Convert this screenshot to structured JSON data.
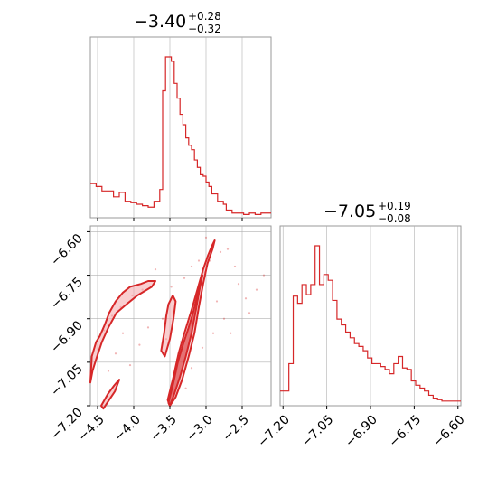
{
  "colors": {
    "series": "#d62728",
    "fill": "#f4a6a9",
    "grid": "#b0b0b0",
    "axis": "#000000"
  },
  "chart_data": [
    {
      "type": "histogram",
      "panel": "marginal-param-1",
      "title": {
        "main": "−3.40",
        "sup": "+0.28",
        "sub": "−0.32"
      },
      "x_range": [
        -4.6,
        -2.1
      ],
      "y_axis": "hidden",
      "grid": true,
      "bins": [
        [
          -4.6,
          2.2
        ],
        [
          -4.52,
          2.0
        ],
        [
          -4.44,
          1.7
        ],
        [
          -4.36,
          1.7
        ],
        [
          -4.28,
          1.3
        ],
        [
          -4.2,
          1.6
        ],
        [
          -4.12,
          1.0
        ],
        [
          -4.04,
          0.9
        ],
        [
          -3.96,
          0.8
        ],
        [
          -3.88,
          0.7
        ],
        [
          -3.8,
          0.6
        ],
        [
          -3.72,
          1.0
        ],
        [
          -3.64,
          1.8
        ],
        [
          -3.6,
          8.5
        ],
        [
          -3.56,
          10.8
        ],
        [
          -3.52,
          10.8
        ],
        [
          -3.48,
          10.5
        ],
        [
          -3.44,
          9.0
        ],
        [
          -3.4,
          8.0
        ],
        [
          -3.36,
          6.9
        ],
        [
          -3.32,
          6.2
        ],
        [
          -3.28,
          5.3
        ],
        [
          -3.24,
          4.8
        ],
        [
          -3.2,
          4.5
        ],
        [
          -3.16,
          3.8
        ],
        [
          -3.12,
          3.3
        ],
        [
          -3.08,
          2.8
        ],
        [
          -3.04,
          2.7
        ],
        [
          -3.0,
          2.3
        ],
        [
          -2.96,
          2.0
        ],
        [
          -2.92,
          1.5
        ],
        [
          -2.88,
          1.5
        ],
        [
          -2.84,
          1.0
        ],
        [
          -2.8,
          1.0
        ],
        [
          -2.76,
          0.8
        ],
        [
          -2.72,
          0.4
        ],
        [
          -2.68,
          0.4
        ],
        [
          -2.64,
          0.2
        ],
        [
          -2.56,
          0.2
        ],
        [
          -2.48,
          0.1
        ],
        [
          -2.4,
          0.2
        ],
        [
          -2.32,
          0.1
        ],
        [
          -2.24,
          0.2
        ],
        [
          -2.1,
          0.2
        ]
      ]
    },
    {
      "type": "contour",
      "panel": "joint-param-1-vs-param-2",
      "x_range": [
        -4.6,
        -2.1
      ],
      "y_range": [
        -7.2,
        -6.58
      ],
      "x_ticks": [
        "−4.5",
        "−4.0",
        "−3.5",
        "−3.0",
        "−2.5"
      ],
      "x_tick_values": [
        -4.5,
        -4.0,
        -3.5,
        -3.0,
        -2.5
      ],
      "y_ticks": [
        "−6.60",
        "−6.75",
        "−6.90",
        "−7.05",
        "−7.20"
      ],
      "y_tick_values": [
        -6.6,
        -6.75,
        -6.9,
        -7.05,
        -7.2
      ],
      "grid": true,
      "outer_contours": [
        [
          [
            -4.58,
            -7.03
          ],
          [
            -4.52,
            -6.98
          ],
          [
            -4.47,
            -6.96
          ],
          [
            -4.4,
            -6.92
          ],
          [
            -4.34,
            -6.88
          ],
          [
            -4.25,
            -6.84
          ],
          [
            -4.15,
            -6.81
          ],
          [
            -4.05,
            -6.79
          ],
          [
            -3.9,
            -6.78
          ],
          [
            -3.8,
            -6.77
          ],
          [
            -3.7,
            -6.77
          ],
          [
            -3.75,
            -6.79
          ],
          [
            -3.95,
            -6.82
          ],
          [
            -4.1,
            -6.85
          ],
          [
            -4.24,
            -6.88
          ],
          [
            -4.35,
            -6.93
          ],
          [
            -4.44,
            -6.98
          ],
          [
            -4.52,
            -7.04
          ],
          [
            -4.57,
            -7.08
          ],
          [
            -4.6,
            -7.12
          ],
          [
            -4.58,
            -7.03
          ]
        ],
        [
          [
            -4.45,
            -7.2
          ],
          [
            -4.36,
            -7.16
          ],
          [
            -4.27,
            -7.13
          ],
          [
            -4.2,
            -7.11
          ],
          [
            -4.26,
            -7.15
          ],
          [
            -4.34,
            -7.18
          ],
          [
            -4.42,
            -7.21
          ],
          [
            -4.45,
            -7.2
          ]
        ],
        [
          [
            -3.53,
            -7.18
          ],
          [
            -3.45,
            -7.1
          ],
          [
            -3.38,
            -7.02
          ],
          [
            -3.3,
            -6.95
          ],
          [
            -3.2,
            -6.87
          ],
          [
            -3.12,
            -6.8
          ],
          [
            -3.04,
            -6.73
          ],
          [
            -2.97,
            -6.68
          ],
          [
            -2.92,
            -6.65
          ],
          [
            -2.88,
            -6.63
          ],
          [
            -2.91,
            -6.66
          ],
          [
            -2.98,
            -6.71
          ],
          [
            -3.04,
            -6.78
          ],
          [
            -3.1,
            -6.86
          ],
          [
            -3.16,
            -6.95
          ],
          [
            -3.24,
            -7.03
          ],
          [
            -3.33,
            -7.11
          ],
          [
            -3.42,
            -7.17
          ],
          [
            -3.5,
            -7.2
          ],
          [
            -3.53,
            -7.18
          ]
        ],
        [
          [
            -3.62,
            -7.01
          ],
          [
            -3.58,
            -6.95
          ],
          [
            -3.55,
            -6.89
          ],
          [
            -3.52,
            -6.85
          ],
          [
            -3.46,
            -6.82
          ],
          [
            -3.42,
            -6.84
          ],
          [
            -3.45,
            -6.9
          ],
          [
            -3.5,
            -6.97
          ],
          [
            -3.57,
            -7.03
          ],
          [
            -3.62,
            -7.01
          ]
        ]
      ],
      "inner_contours": [
        [
          [
            -3.52,
            -7.19
          ],
          [
            -3.46,
            -7.13
          ],
          [
            -3.39,
            -7.05
          ],
          [
            -3.32,
            -6.99
          ],
          [
            -3.24,
            -6.93
          ],
          [
            -3.18,
            -6.88
          ],
          [
            -3.13,
            -6.83
          ],
          [
            -3.08,
            -6.78
          ],
          [
            -3.05,
            -6.75
          ],
          [
            -3.09,
            -6.8
          ],
          [
            -3.14,
            -6.87
          ],
          [
            -3.2,
            -6.95
          ],
          [
            -3.28,
            -7.03
          ],
          [
            -3.36,
            -7.1
          ],
          [
            -3.44,
            -7.16
          ],
          [
            -3.5,
            -7.2
          ],
          [
            -3.52,
            -7.19
          ]
        ]
      ],
      "points": [
        [
          -4.5,
          -7.02
        ],
        [
          -4.41,
          -6.94
        ],
        [
          -4.3,
          -6.89
        ],
        [
          -4.18,
          -6.86
        ],
        [
          -4.02,
          -6.82
        ],
        [
          -3.88,
          -6.8
        ],
        [
          -3.6,
          -6.9
        ],
        [
          -3.55,
          -6.97
        ],
        [
          -3.4,
          -7.04
        ],
        [
          -3.35,
          -6.98
        ],
        [
          -3.25,
          -6.92
        ],
        [
          -3.15,
          -6.86
        ],
        [
          -3.1,
          -6.79
        ],
        [
          -3.02,
          -6.74
        ],
        [
          -2.95,
          -6.7
        ],
        [
          -2.8,
          -6.67
        ],
        [
          -2.7,
          -6.66
        ],
        [
          -2.6,
          -6.72
        ],
        [
          -2.55,
          -6.78
        ],
        [
          -2.45,
          -6.83
        ],
        [
          -2.3,
          -6.8
        ],
        [
          -2.2,
          -6.75
        ],
        [
          -3.7,
          -6.73
        ],
        [
          -3.8,
          -6.93
        ],
        [
          -3.92,
          -6.99
        ],
        [
          -4.05,
          -7.06
        ],
        [
          -4.15,
          -6.95
        ],
        [
          -4.25,
          -7.02
        ],
        [
          -4.35,
          -7.08
        ],
        [
          -3.48,
          -6.79
        ],
        [
          -3.3,
          -6.76
        ],
        [
          -3.2,
          -6.72
        ],
        [
          -3.1,
          -6.7
        ],
        [
          -2.85,
          -6.84
        ],
        [
          -2.75,
          -6.9
        ],
        [
          -2.9,
          -6.95
        ],
        [
          -3.05,
          -7.0
        ],
        [
          -3.2,
          -7.07
        ],
        [
          -3.28,
          -7.14
        ],
        [
          -3.0,
          -6.62
        ],
        [
          -2.66,
          -6.95
        ],
        [
          -2.4,
          -6.88
        ]
      ]
    },
    {
      "type": "histogram",
      "panel": "marginal-param-2",
      "title": {
        "main": "−7.05",
        "sup": "+0.19",
        "sub": "−0.08"
      },
      "x_range": [
        -7.21,
        -6.59
      ],
      "x_ticks": [
        "−7.20",
        "−7.05",
        "−6.90",
        "−6.75",
        "−6.60"
      ],
      "x_tick_values": [
        -7.2,
        -7.05,
        -6.9,
        -6.75,
        -6.6
      ],
      "y_axis": "hidden",
      "grid": true,
      "bins": [
        [
          -7.21,
          0.9
        ],
        [
          -7.19,
          0.9
        ],
        [
          -7.18,
          2.8
        ],
        [
          -7.165,
          7.5
        ],
        [
          -7.15,
          7.0
        ],
        [
          -7.135,
          8.3
        ],
        [
          -7.12,
          7.6
        ],
        [
          -7.105,
          8.3
        ],
        [
          -7.09,
          11.0
        ],
        [
          -7.075,
          8.3
        ],
        [
          -7.06,
          9.0
        ],
        [
          -7.045,
          8.6
        ],
        [
          -7.03,
          7.2
        ],
        [
          -7.015,
          5.9
        ],
        [
          -7.0,
          5.5
        ],
        [
          -6.985,
          5.0
        ],
        [
          -6.97,
          4.6
        ],
        [
          -6.955,
          4.2
        ],
        [
          -6.94,
          4.0
        ],
        [
          -6.925,
          3.7
        ],
        [
          -6.91,
          3.2
        ],
        [
          -6.895,
          2.8
        ],
        [
          -6.88,
          2.8
        ],
        [
          -6.865,
          2.6
        ],
        [
          -6.85,
          2.4
        ],
        [
          -6.835,
          2.1
        ],
        [
          -6.82,
          2.8
        ],
        [
          -6.805,
          3.3
        ],
        [
          -6.79,
          2.5
        ],
        [
          -6.775,
          2.4
        ],
        [
          -6.76,
          1.6
        ],
        [
          -6.745,
          1.3
        ],
        [
          -6.73,
          1.1
        ],
        [
          -6.715,
          0.9
        ],
        [
          -6.7,
          0.6
        ],
        [
          -6.685,
          0.4
        ],
        [
          -6.67,
          0.3
        ],
        [
          -6.655,
          0.2
        ],
        [
          -6.59,
          0.2
        ]
      ]
    }
  ]
}
